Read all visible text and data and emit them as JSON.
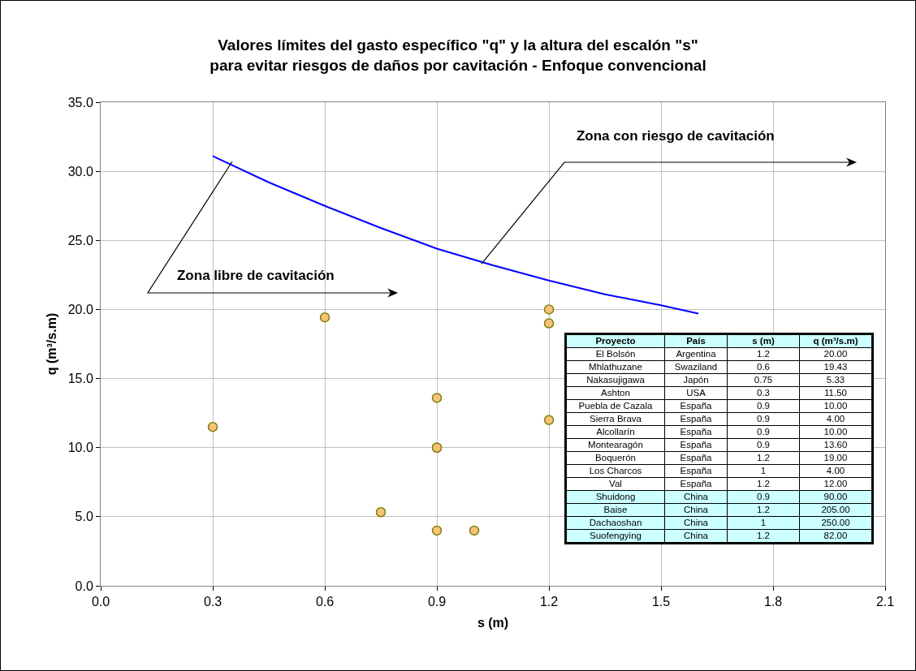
{
  "chart_data": [
    {
      "type": "scatter",
      "title": "Valores límites del gasto específico \"q\" y la altura del escalón \"s\"\npara evitar riesgos de daños por cavitación - Enfoque convencional",
      "xlabel": "s (m)",
      "ylabel": "q (m³/s.m)",
      "xlim": [
        0,
        2.1
      ],
      "xticks": [
        {
          "value": 0,
          "label": "0.0"
        },
        0.3,
        0.6,
        0.9,
        1.2,
        1.5,
        1.8,
        2.1
      ],
      "ylim": [
        0,
        35
      ],
      "yticks": [
        {
          "value": 0,
          "label": "0.0"
        },
        {
          "value": 5,
          "label": "5.0"
        },
        {
          "value": 10,
          "label": "10.0"
        },
        {
          "value": 15,
          "label": "15.0"
        },
        {
          "value": 20,
          "label": "20.0"
        },
        {
          "value": 25,
          "label": "25.0"
        },
        {
          "value": 30,
          "label": "30.0"
        },
        {
          "value": 35,
          "label": "35.0"
        }
      ],
      "grid": true,
      "annotations": [
        "Zona libre de cavitación",
        "Zona con riesgo de cavitación"
      ],
      "series": [
        {
          "type": "line",
          "marker": "none",
          "color": "#0000ff",
          "x": [
            0.3,
            0.45,
            0.6,
            0.75,
            0.9,
            1.05,
            1.2,
            1.35,
            1.5,
            1.6
          ],
          "values": [
            31.1,
            29.2,
            27.5,
            25.9,
            24.4,
            23.2,
            22.1,
            21.1,
            20.3,
            19.7
          ]
        },
        {
          "type": "scatter",
          "marker": "circle",
          "color": "#f7c27f",
          "x": [
            0.3,
            0.6,
            0.75,
            0.9,
            0.9,
            0.9,
            0.9,
            1,
            1.2,
            1.2,
            1.2
          ],
          "values": [
            11.5,
            19.43,
            5.33,
            10,
            4,
            10,
            13.6,
            4,
            20,
            19,
            12
          ]
        }
      ]
    },
    {
      "type": "other",
      "categories": [
        "Proyecto",
        "País",
        "s (m)",
        "q (m³/s.m)"
      ],
      "annotations": [
        "El Bolsón",
        "Argentina",
        "1.2",
        "20.00",
        "Mhlathuzane",
        "Swaziland",
        "0.6",
        "19.43",
        "Nakasujigawa",
        "Japón",
        "0.75",
        "5.33",
        "Ashton",
        "USA",
        "0.3",
        "11.50",
        "Puebla de Cazala",
        "España",
        "0.9",
        "10.00",
        "Sierra Brava",
        "España",
        "0.9",
        "4.00",
        "Alcollarín",
        "España",
        "0.9",
        "10.00",
        "Montearagón",
        "España",
        "0.9",
        "13.60",
        "Boquerón",
        "España",
        "1.2",
        "19.00",
        "Los Charcos",
        "España",
        "1",
        "4.00",
        "Val",
        "España",
        "1.2",
        "12.00",
        "Shuidong",
        "China",
        "0.9",
        "90.00",
        "Baise",
        "China",
        "1.2",
        "205.00",
        "Dachaoshan",
        "China",
        "1",
        "250.00",
        "Suofengying",
        "China",
        "1.2",
        "82.00"
      ],
      "colors": [
        "#ccffff",
        "#ffffff",
        "#ffffff",
        "#ffffff",
        "#ffffff",
        "#ffffff",
        "#ffffff",
        "#ffffff",
        "#ffffff",
        "#ffffff",
        "#ffffff",
        "#ffffff",
        "#ccffff",
        "#ccffff",
        "#ccffff",
        "#ccffff"
      ]
    }
  ]
}
